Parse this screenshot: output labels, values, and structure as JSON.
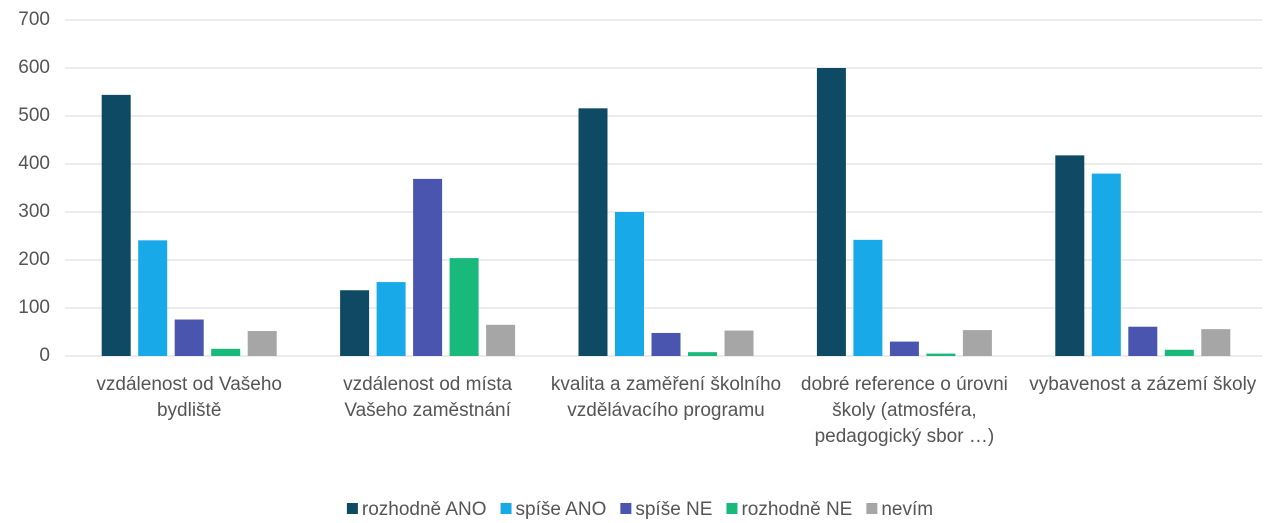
{
  "chart_data": {
    "type": "bar",
    "categories": [
      "vzdálenost od Vašeho bydliště",
      "vzdálenost od místa Vašeho zaměstnání",
      "kvalita a zaměření školního vzdělávacího programu",
      "dobré reference o úrovni školy (atmosféra, pedagogický sbor …)",
      "vybavenost a zázemí školy"
    ],
    "series": [
      {
        "name": "rozhodně ANO",
        "color": "#0e4a63",
        "values": [
          544,
          137,
          516,
          600,
          418
        ]
      },
      {
        "name": "spíše ANO",
        "color": "#18aae8",
        "values": [
          241,
          154,
          300,
          242,
          380
        ]
      },
      {
        "name": "spíše NE",
        "color": "#4a55b0",
        "values": [
          76,
          369,
          48,
          30,
          61
        ]
      },
      {
        "name": "rozhodně NE",
        "color": "#19b97c",
        "values": [
          15,
          204,
          8,
          5,
          13
        ]
      },
      {
        "name": "nevím",
        "color": "#a6a6a6",
        "values": [
          52,
          65,
          53,
          54,
          56
        ]
      }
    ],
    "ylim": [
      0,
      700
    ],
    "yticks": [
      0,
      100,
      200,
      300,
      400,
      500,
      600,
      700
    ],
    "grid": true,
    "legend": "bottom"
  }
}
